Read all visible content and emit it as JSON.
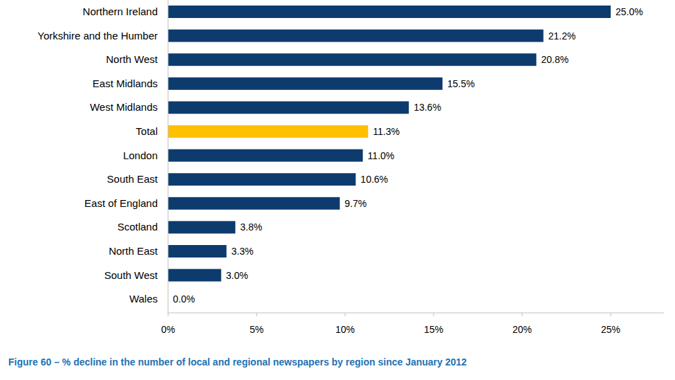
{
  "chart_data": {
    "type": "bar",
    "orientation": "horizontal",
    "title": "Figure 60 – % decline in the number of local and regional newspapers by region since January 2012",
    "categories": [
      "Northern Ireland",
      "Yorkshire and the Humber",
      "North West",
      "East Midlands",
      "West Midlands",
      "Total",
      "London",
      "South East",
      "East of England",
      "Scotland",
      "North East",
      "South West",
      "Wales"
    ],
    "values": [
      25.0,
      21.2,
      20.8,
      15.5,
      13.6,
      11.3,
      11.0,
      10.6,
      9.7,
      3.8,
      3.3,
      3.0,
      0.0
    ],
    "value_labels": [
      "25.0%",
      "21.2%",
      "20.8%",
      "15.5%",
      "13.6%",
      "11.3%",
      "11.0%",
      "10.6%",
      "9.7%",
      "3.8%",
      "3.3%",
      "3.0%",
      "0.0%"
    ],
    "colors": [
      "#0d3b6e",
      "#0d3b6e",
      "#0d3b6e",
      "#0d3b6e",
      "#0d3b6e",
      "#ffc000",
      "#0d3b6e",
      "#0d3b6e",
      "#0d3b6e",
      "#0d3b6e",
      "#0d3b6e",
      "#0d3b6e",
      "#0d3b6e"
    ],
    "xlim": [
      0,
      28
    ],
    "xticks": [
      {
        "value": 0,
        "label": "0%"
      },
      {
        "value": 5,
        "label": "5%"
      },
      {
        "value": 10,
        "label": "10%"
      },
      {
        "value": 15,
        "label": "15%"
      },
      {
        "value": 20,
        "label": "20%"
      },
      {
        "value": 25,
        "label": "25%"
      }
    ],
    "grid": false,
    "data_labels": true
  }
}
